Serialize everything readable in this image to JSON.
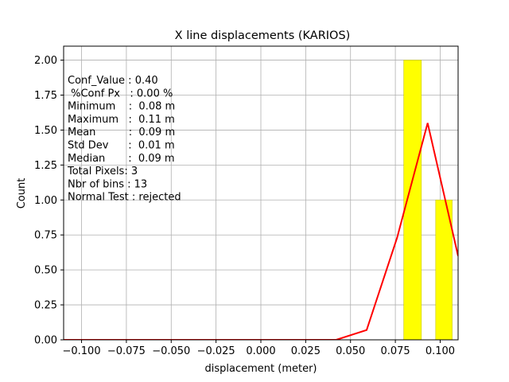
{
  "chart_data": {
    "type": "bar",
    "title": "X line displacements (KARIOS)",
    "xlabel": "displacement (meter)",
    "ylabel": "Count",
    "xlim": [
      -0.11,
      0.11
    ],
    "ylim": [
      0.0,
      2.1
    ],
    "grid": true,
    "x_ticks": [
      -0.1,
      -0.075,
      -0.05,
      -0.025,
      0.0,
      0.025,
      0.05,
      0.075,
      0.1
    ],
    "x_tick_labels": [
      "−0.100",
      "−0.075",
      "−0.050",
      "−0.025",
      "0.000",
      "0.025",
      "0.050",
      "0.075",
      "0.100"
    ],
    "y_ticks": [
      0.0,
      0.25,
      0.5,
      0.75,
      1.0,
      1.25,
      1.5,
      1.75,
      2.0
    ],
    "y_tick_labels": [
      "0.00",
      "0.25",
      "0.50",
      "0.75",
      "1.00",
      "1.25",
      "1.50",
      "1.75",
      "2.00"
    ],
    "histogram": {
      "color": "#ffff00",
      "edge_color": "#c8c800",
      "bins": [
        {
          "x0": 0.0797,
          "x1": 0.0895,
          "count": 2
        },
        {
          "x0": 0.0975,
          "x1": 0.1067,
          "count": 1
        }
      ]
    },
    "fit_curve": {
      "color": "#ff0000",
      "x": [
        -0.11,
        0.0,
        0.042,
        0.059,
        0.076,
        0.093,
        0.11
      ],
      "y": [
        0.0,
        0.0,
        0.0,
        0.07,
        0.73,
        1.55,
        0.6
      ]
    },
    "stats_lines": [
      "Conf_Value : 0.40",
      " %Conf Px   : 0.00 %",
      "Minimum    :  0.08 m",
      "Maximum   :  0.11 m",
      "Mean          :  0.09 m",
      "Std Dev      :  0.01 m",
      "Median       :  0.09 m",
      "Total Pixels: 3",
      "Nbr of bins : 13",
      "Normal Test : rejected"
    ]
  }
}
